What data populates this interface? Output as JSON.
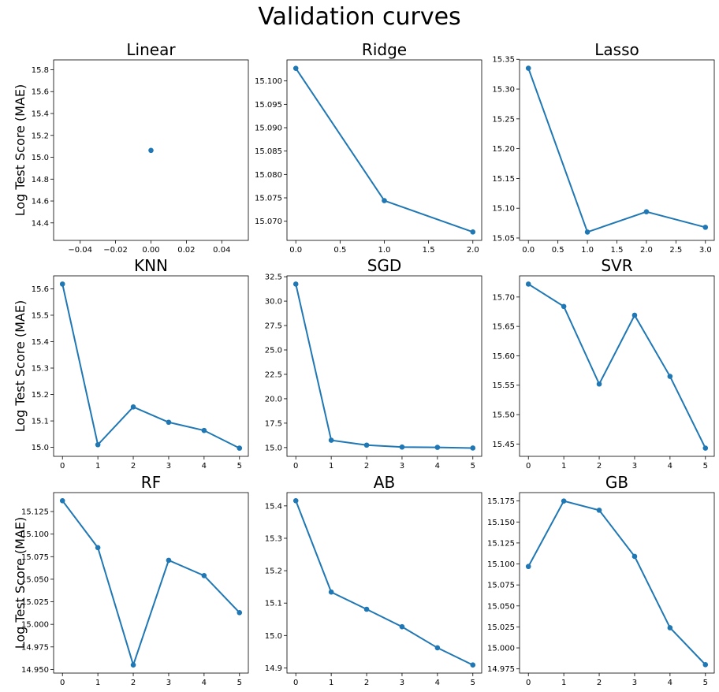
{
  "figure": {
    "title": "Validation curves"
  },
  "style": {
    "line_color": "#1f77b4",
    "axis_color": "#000000",
    "background": "#ffffff"
  },
  "chart_data": [
    {
      "type": "line",
      "title": "Linear",
      "ylabel": "Log Test Score (MAE)",
      "x": [
        0
      ],
      "y": [
        15.063
      ],
      "xlim": [
        -0.055,
        0.055
      ],
      "ylim": [
        14.24,
        15.89
      ],
      "xticks": [
        -0.04,
        -0.02,
        0.0,
        0.02,
        0.04
      ],
      "xtick_labels": [
        "−0.04",
        "−0.02",
        "0.00",
        "0.02",
        "0.04"
      ],
      "yticks": [
        14.4,
        14.6,
        14.8,
        15.0,
        15.2,
        15.4,
        15.6,
        15.8
      ],
      "ytick_labels": [
        "14.4",
        "14.6",
        "14.8",
        "15.0",
        "15.2",
        "15.4",
        "15.6",
        "15.8"
      ]
    },
    {
      "type": "line",
      "title": "Ridge",
      "ylabel": "",
      "x": [
        0,
        1,
        2
      ],
      "y": [
        15.1027,
        15.0744,
        15.0677
      ],
      "xlim": [
        -0.1,
        2.1
      ],
      "ylim": [
        15.0659,
        15.1045
      ],
      "xticks": [
        0,
        0.5,
        1,
        1.5,
        2
      ],
      "xtick_labels": [
        "0.0",
        "0.5",
        "1.0",
        "1.5",
        "2.0"
      ],
      "yticks": [
        15.07,
        15.075,
        15.08,
        15.085,
        15.09,
        15.095,
        15.1
      ],
      "ytick_labels": [
        "15.070",
        "15.075",
        "15.080",
        "15.085",
        "15.090",
        "15.095",
        "15.100"
      ]
    },
    {
      "type": "line",
      "title": "Lasso",
      "ylabel": "",
      "x": [
        0,
        1,
        2,
        3
      ],
      "y": [
        15.335,
        15.06,
        15.094,
        15.068
      ],
      "xlim": [
        -0.15,
        3.15
      ],
      "ylim": [
        15.046,
        15.349
      ],
      "xticks": [
        0,
        0.5,
        1,
        1.5,
        2,
        2.5,
        3
      ],
      "xtick_labels": [
        "0.0",
        "0.5",
        "1.0",
        "1.5",
        "2.0",
        "2.5",
        "3.0"
      ],
      "yticks": [
        15.05,
        15.1,
        15.15,
        15.2,
        15.25,
        15.3,
        15.35
      ],
      "ytick_labels": [
        "15.05",
        "15.10",
        "15.15",
        "15.20",
        "15.25",
        "15.30",
        "15.35"
      ]
    },
    {
      "type": "line",
      "title": "KNN",
      "ylabel": "Log Test Score (MAE)",
      "x": [
        0,
        1,
        2,
        3,
        4,
        5
      ],
      "y": [
        15.618,
        15.01,
        15.153,
        15.095,
        15.064,
        14.997
      ],
      "xlim": [
        -0.25,
        5.25
      ],
      "ylim": [
        14.966,
        15.649
      ],
      "xticks": [
        0,
        1,
        2,
        3,
        4,
        5
      ],
      "xtick_labels": [
        "0",
        "1",
        "2",
        "3",
        "4",
        "5"
      ],
      "yticks": [
        15.0,
        15.1,
        15.2,
        15.3,
        15.4,
        15.5,
        15.6
      ],
      "ytick_labels": [
        "15.0",
        "15.1",
        "15.2",
        "15.3",
        "15.4",
        "15.5",
        "15.6"
      ]
    },
    {
      "type": "line",
      "title": "SGD",
      "ylabel": "",
      "x": [
        0,
        1,
        2,
        3,
        4,
        5
      ],
      "y": [
        31.75,
        15.75,
        15.25,
        15.05,
        15.02,
        14.95
      ],
      "xlim": [
        -0.25,
        5.25
      ],
      "ylim": [
        14.1,
        32.59
      ],
      "xticks": [
        0,
        1,
        2,
        3,
        4,
        5
      ],
      "xtick_labels": [
        "0",
        "1",
        "2",
        "3",
        "4",
        "5"
      ],
      "yticks": [
        15.0,
        17.5,
        20.0,
        22.5,
        25.0,
        27.5,
        30.0,
        32.5
      ],
      "ytick_labels": [
        "15.0",
        "17.5",
        "20.0",
        "22.5",
        "25.0",
        "27.5",
        "30.0",
        "32.5"
      ]
    },
    {
      "type": "line",
      "title": "SVR",
      "ylabel": "",
      "x": [
        0,
        1,
        2,
        3,
        4,
        5
      ],
      "y": [
        15.722,
        15.684,
        15.552,
        15.669,
        15.565,
        15.443
      ],
      "xlim": [
        -0.25,
        5.25
      ],
      "ylim": [
        15.429,
        15.736
      ],
      "xticks": [
        0,
        1,
        2,
        3,
        4,
        5
      ],
      "xtick_labels": [
        "0",
        "1",
        "2",
        "3",
        "4",
        "5"
      ],
      "yticks": [
        15.45,
        15.5,
        15.55,
        15.6,
        15.65,
        15.7
      ],
      "ytick_labels": [
        "15.45",
        "15.50",
        "15.55",
        "15.60",
        "15.65",
        "15.70"
      ]
    },
    {
      "type": "line",
      "title": "RF",
      "ylabel": "Log Test Score (MAE)",
      "x": [
        0,
        1,
        2,
        3,
        4,
        5
      ],
      "y": [
        15.137,
        15.085,
        14.955,
        15.071,
        15.054,
        15.013
      ],
      "xlim": [
        -0.25,
        5.25
      ],
      "ylim": [
        14.946,
        15.146
      ],
      "xticks": [
        0,
        1,
        2,
        3,
        4,
        5
      ],
      "xtick_labels": [
        "0",
        "1",
        "2",
        "3",
        "4",
        "5"
      ],
      "yticks": [
        14.95,
        14.975,
        15.0,
        15.025,
        15.05,
        15.075,
        15.1,
        15.125
      ],
      "ytick_labels": [
        "14.950",
        "14.975",
        "15.000",
        "15.025",
        "15.050",
        "15.075",
        "15.100",
        "15.125"
      ]
    },
    {
      "type": "line",
      "title": "AB",
      "ylabel": "",
      "x": [
        0,
        1,
        2,
        3,
        4,
        5
      ],
      "y": [
        15.416,
        15.134,
        15.081,
        15.027,
        14.962,
        14.909
      ],
      "xlim": [
        -0.25,
        5.25
      ],
      "ylim": [
        14.884,
        15.441
      ],
      "xticks": [
        0,
        1,
        2,
        3,
        4,
        5
      ],
      "xtick_labels": [
        "0",
        "1",
        "2",
        "3",
        "4",
        "5"
      ],
      "yticks": [
        14.9,
        15.0,
        15.1,
        15.2,
        15.3,
        15.4
      ],
      "ytick_labels": [
        "14.9",
        "15.0",
        "15.1",
        "15.2",
        "15.3",
        "15.4"
      ]
    },
    {
      "type": "line",
      "title": "GB",
      "ylabel": "",
      "x": [
        0,
        1,
        2,
        3,
        4,
        5
      ],
      "y": [
        15.097,
        15.175,
        15.164,
        15.109,
        15.024,
        14.98
      ],
      "xlim": [
        -0.25,
        5.25
      ],
      "ylim": [
        14.97,
        15.185
      ],
      "xticks": [
        0,
        1,
        2,
        3,
        4,
        5
      ],
      "xtick_labels": [
        "0",
        "1",
        "2",
        "3",
        "4",
        "5"
      ],
      "yticks": [
        14.975,
        15.0,
        15.025,
        15.05,
        15.075,
        15.1,
        15.125,
        15.15,
        15.175
      ],
      "ytick_labels": [
        "14.975",
        "15.000",
        "15.025",
        "15.050",
        "15.075",
        "15.100",
        "15.125",
        "15.150",
        "15.175"
      ]
    }
  ]
}
